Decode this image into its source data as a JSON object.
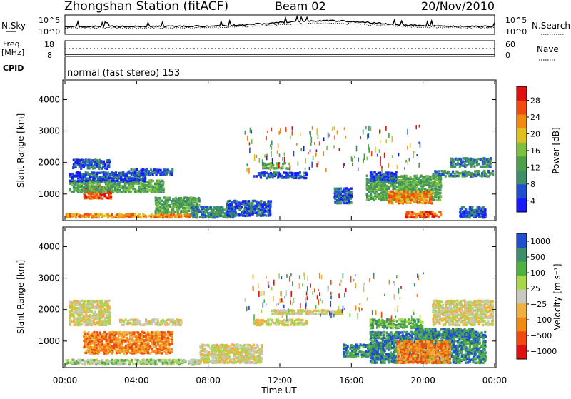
{
  "header": {
    "title": "Zhongshan Station (fitACF)",
    "beam": "Beam 02",
    "date": "20/Nov/2010"
  },
  "strip1": {
    "left_label": "N.Sky",
    "left_tick_top": "10^5",
    "left_tick_bottom": "10^0",
    "right_tick_top": "10^5",
    "right_tick_bottom": "10^0",
    "right_label": "N.Search"
  },
  "strip2": {
    "left_label_top": "Freq.",
    "left_label_bottom": "[MHz]",
    "left_tick_top": "18",
    "left_tick_bottom": "8",
    "right_tick_top": "60",
    "right_tick_bottom": "0",
    "right_label": "Nave"
  },
  "cpid": {
    "label": "CPID",
    "value": "normal (fast stereo) 153"
  },
  "colors": {
    "power": [
      "#1a1aff",
      "#2050d0",
      "#3d8f6a",
      "#4fa04a",
      "#7cc040",
      "#e0c020",
      "#f08a10",
      "#f04a10",
      "#e01010"
    ],
    "velocity": [
      "#e01010",
      "#f04a10",
      "#f08a10",
      "#f0b040",
      "#c8c8c0",
      "#a8d848",
      "#50b040",
      "#3d8f6a",
      "#2050d0"
    ]
  },
  "chart_data": [
    {
      "type": "heatmap",
      "title": "Power",
      "ylabel": "Slant Range [km]",
      "xlabel": "",
      "ylim": [
        180,
        4600
      ],
      "y_ticks": [
        "1000",
        "2000",
        "3000",
        "4000"
      ],
      "x_ticks": [
        "00:00",
        "04:00",
        "08:00",
        "12:00",
        "16:00",
        "20:00",
        "00:00"
      ],
      "colorbar_label": "Power [dB]",
      "colorbar_ticks": [
        "4",
        "8",
        "12",
        "16",
        "20",
        "24",
        "28"
      ],
      "regions": [
        {
          "t": [
            0.0,
            7.4
          ],
          "r": [
            250,
            380
          ],
          "level": 6
        },
        {
          "t": [
            1.0,
            2.6
          ],
          "r": [
            850,
            1250
          ],
          "level": 7
        },
        {
          "t": [
            0.2,
            5.5
          ],
          "r": [
            1050,
            1450
          ],
          "level": 3
        },
        {
          "t": [
            0.2,
            4.5
          ],
          "r": [
            1400,
            1700
          ],
          "level": 1
        },
        {
          "t": [
            0.4,
            2.5
          ],
          "r": [
            1800,
            2100
          ],
          "level": 1
        },
        {
          "t": [
            3.5,
            6.0
          ],
          "r": [
            1600,
            1800
          ],
          "level": 1
        },
        {
          "t": [
            5.0,
            7.5
          ],
          "r": [
            400,
            900
          ],
          "level": 3
        },
        {
          "t": [
            7.0,
            9.5
          ],
          "r": [
            250,
            600
          ],
          "level": 2
        },
        {
          "t": [
            9.0,
            11.5
          ],
          "r": [
            300,
            800
          ],
          "level": 1
        },
        {
          "t": [
            10.5,
            13.5
          ],
          "r": [
            1500,
            1700
          ],
          "level": 1
        },
        {
          "t": [
            11.0,
            12.5
          ],
          "r": [
            1800,
            2000
          ],
          "level": 3
        },
        {
          "t": [
            15.0,
            16.0
          ],
          "r": [
            700,
            1200
          ],
          "level": 1
        },
        {
          "t": [
            16.8,
            21.0
          ],
          "r": [
            800,
            1600
          ],
          "level": 3
        },
        {
          "t": [
            18.0,
            20.5
          ],
          "r": [
            700,
            1100
          ],
          "level": 6
        },
        {
          "t": [
            19.0,
            21.0
          ],
          "r": [
            250,
            450
          ],
          "level": 7
        },
        {
          "t": [
            20.5,
            23.9
          ],
          "r": [
            1550,
            1750
          ],
          "level": 2
        },
        {
          "t": [
            21.5,
            23.8
          ],
          "r": [
            1850,
            2150
          ],
          "level": 2
        },
        {
          "t": [
            17.0,
            18.5
          ],
          "r": [
            1400,
            1700
          ],
          "level": 1
        },
        {
          "t": [
            22.0,
            23.5
          ],
          "r": [
            250,
            600
          ],
          "level": 1
        }
      ]
    },
    {
      "type": "heatmap",
      "title": "Velocity",
      "ylabel": "Slant Range [km]",
      "xlabel": "Time UT",
      "ylim": [
        180,
        4600
      ],
      "y_ticks": [
        "1000",
        "2000",
        "3000",
        "4000"
      ],
      "x_ticks": [
        "00:00",
        "04:00",
        "08:00",
        "12:00",
        "16:00",
        "20:00",
        "00:00"
      ],
      "colorbar_label": "Velocity [m s⁻¹]",
      "colorbar_ticks": [
        "1000",
        "500",
        "100",
        "25",
        "−25",
        "−100",
        "−500",
        "−1000"
      ],
      "regions": [
        {
          "t": [
            0.0,
            7.5
          ],
          "r": [
            250,
            420
          ],
          "level": 5
        },
        {
          "t": [
            1.0,
            6.0
          ],
          "r": [
            600,
            1300
          ],
          "level": 2
        },
        {
          "t": [
            0.2,
            2.5
          ],
          "r": [
            1500,
            2300
          ],
          "level": 4
        },
        {
          "t": [
            3.0,
            6.5
          ],
          "r": [
            1500,
            1700
          ],
          "level": 4
        },
        {
          "t": [
            7.5,
            11.0
          ],
          "r": [
            300,
            900
          ],
          "level": 4
        },
        {
          "t": [
            10.5,
            13.5
          ],
          "r": [
            1500,
            1700
          ],
          "level": 4
        },
        {
          "t": [
            11.5,
            15.5
          ],
          "r": [
            1850,
            2000
          ],
          "level": 4
        },
        {
          "t": [
            15.5,
            17.5
          ],
          "r": [
            500,
            900
          ],
          "level": 7
        },
        {
          "t": [
            17.0,
            23.5
          ],
          "r": [
            300,
            1300
          ],
          "level": 7
        },
        {
          "t": [
            18.5,
            21.5
          ],
          "r": [
            300,
            1000
          ],
          "level": 2
        },
        {
          "t": [
            20.5,
            23.9
          ],
          "r": [
            1500,
            2300
          ],
          "level": 4
        },
        {
          "t": [
            17.0,
            20.0
          ],
          "r": [
            1400,
            1700
          ],
          "level": 6
        },
        {
          "t": [
            19.5,
            23.0
          ],
          "r": [
            1100,
            1400
          ],
          "level": 7
        }
      ]
    }
  ]
}
